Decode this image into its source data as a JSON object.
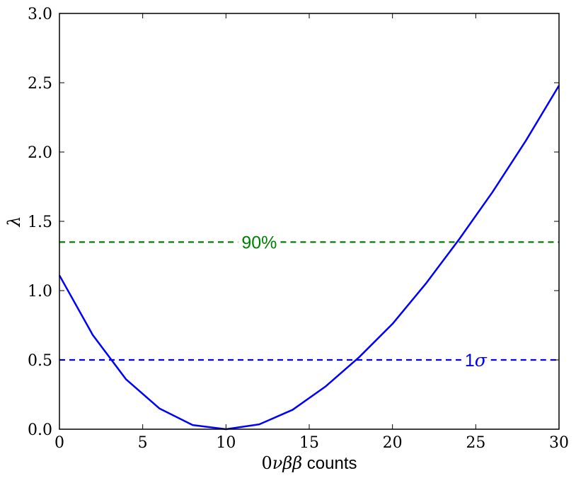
{
  "chart_data": {
    "type": "line",
    "xlabel": {
      "math": "0νββ",
      "text": " counts"
    },
    "ylabel": "λ",
    "xlim": [
      0,
      30
    ],
    "ylim": [
      0,
      3.0
    ],
    "xticks": [
      "0",
      "5",
      "10",
      "15",
      "20",
      "25",
      "30"
    ],
    "yticks": [
      "0.0",
      "0.5",
      "1.0",
      "1.5",
      "2.0",
      "2.5",
      "3.0"
    ],
    "grid": false,
    "series": [
      {
        "color": "#0000ff",
        "style": "solid",
        "x": [
          0,
          2,
          4,
          6,
          8,
          10,
          12,
          14,
          16,
          18,
          20,
          22,
          24,
          26,
          28,
          30
        ],
        "y": [
          1.11,
          0.68,
          0.36,
          0.15,
          0.03,
          0.0,
          0.035,
          0.14,
          0.31,
          0.52,
          0.76,
          1.05,
          1.37,
          1.71,
          2.08,
          2.48
        ]
      }
    ],
    "reference_lines": [
      {
        "y": 1.35,
        "label": "90%",
        "label_x": 12,
        "color": "#008000",
        "style": "dashed"
      },
      {
        "y": 0.5,
        "label_prefix": "1",
        "label_math": "σ",
        "label_x": 25,
        "color": "#0000ff",
        "style": "dashed"
      }
    ]
  }
}
